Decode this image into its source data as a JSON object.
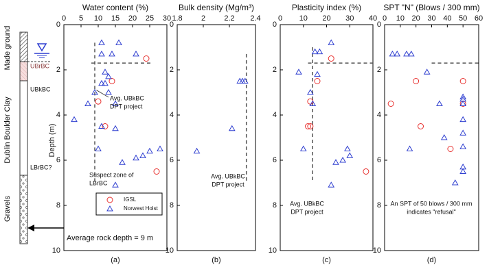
{
  "strata": {
    "left_labels": [
      "Made ground",
      "Dublin Boulder Clay",
      "Gravels"
    ],
    "right_labels": [
      "UBrBC",
      "UBkBC",
      "LBrBC?"
    ],
    "rock_depth_note": "Average rock depth = 9 m"
  },
  "chart_data": [
    {
      "type": "scatter",
      "title": "Water content (%)",
      "panel_label": "(a)",
      "ylabel": "Depth (m)",
      "xlim": [
        0,
        30
      ],
      "xticks": [
        0,
        5,
        10,
        15,
        20,
        25,
        30
      ],
      "ylim": [
        0,
        10
      ],
      "yticks": [
        0,
        2,
        4,
        6,
        8,
        10
      ],
      "y_inverted": true,
      "legend": true,
      "series": [
        {
          "name": "IGSL",
          "color": "#e8312f",
          "marker": "circle",
          "x": [
            24,
            14,
            10,
            12,
            27
          ],
          "y": [
            1.5,
            2.5,
            3.4,
            4.5,
            6.5
          ]
        },
        {
          "name": "Norwest Holst",
          "color": "#2f3fd0",
          "marker": "triangle",
          "x": [
            11,
            16,
            11,
            14,
            21,
            12,
            13,
            11,
            12,
            9,
            13,
            7,
            15,
            3,
            11,
            15,
            10,
            28,
            25,
            23,
            21,
            17,
            15
          ],
          "y": [
            0.8,
            0.8,
            1.3,
            1.3,
            1.3,
            2.1,
            2.3,
            2.6,
            2.6,
            3.0,
            3.0,
            3.5,
            3.5,
            4.2,
            4.5,
            4.6,
            5.5,
            5.5,
            5.6,
            5.8,
            5.9,
            6.1,
            7.1
          ]
        }
      ],
      "ref_lines": [
        {
          "x": [
            8,
            26
          ],
          "y": [
            1.7,
            1.7
          ]
        },
        {
          "x": [
            9,
            9
          ],
          "y": [
            0.8,
            7
          ]
        }
      ],
      "annotations": [
        [
          "Avg. UBkBC",
          "DPT project"
        ],
        [
          "Suspect zone of",
          "LBrBC"
        ]
      ]
    },
    {
      "type": "scatter",
      "title": "Bulk density (Mg/m³)",
      "panel_label": "(b)",
      "xlim": [
        1.8,
        2.4
      ],
      "xticks": [
        1.8,
        2,
        2.2,
        2.4
      ],
      "ylim": [
        0,
        10
      ],
      "yticks": [
        0,
        2,
        4,
        6,
        8,
        10
      ],
      "y_inverted": true,
      "series": [
        {
          "color": "#2f3fd0",
          "marker": "triangle",
          "x": [
            2.28,
            2.3,
            2.32,
            2.22,
            1.95
          ],
          "y": [
            2.5,
            2.5,
            2.5,
            4.6,
            5.6
          ]
        }
      ],
      "ref_lines": [
        {
          "x": [
            2.33,
            2.33
          ],
          "y": [
            1.3,
            7
          ]
        }
      ],
      "annotations": [
        [
          "Avg. UBkBC",
          "DPT project"
        ]
      ]
    },
    {
      "type": "scatter",
      "title": "Plasticity index (%)",
      "panel_label": "(c)",
      "xlim": [
        0,
        40
      ],
      "xticks": [
        0,
        10,
        20,
        30,
        40
      ],
      "ylim": [
        0,
        10
      ],
      "yticks": [
        0,
        2,
        4,
        6,
        8,
        10
      ],
      "y_inverted": true,
      "series": [
        {
          "color": "#e8312f",
          "marker": "circle",
          "x": [
            22,
            16,
            13,
            12,
            13,
            37
          ],
          "y": [
            1.5,
            2.5,
            3.4,
            4.5,
            4.5,
            6.5
          ]
        },
        {
          "color": "#2f3fd0",
          "marker": "triangle",
          "x": [
            22,
            15,
            17,
            8,
            16,
            13,
            14,
            10,
            29,
            30,
            27,
            24,
            22
          ],
          "y": [
            0.8,
            1.2,
            1.2,
            2.1,
            2.2,
            3.0,
            3.5,
            5.5,
            5.5,
            5.8,
            6.0,
            6.1,
            7.1
          ]
        }
      ],
      "ref_lines": [
        {
          "x": [
            12,
            40
          ],
          "y": [
            1.7,
            1.7
          ]
        },
        {
          "x": [
            14,
            14
          ],
          "y": [
            1.0,
            7
          ]
        }
      ],
      "annotations": [
        [
          "Avg. UBkBC",
          "DPT project"
        ]
      ]
    },
    {
      "type": "scatter",
      "title": "SPT \"N\" (Blows / 300 mm)",
      "panel_label": "(d)",
      "xlim": [
        0,
        60
      ],
      "xticks": [
        0,
        10,
        20,
        30,
        40,
        50,
        60
      ],
      "ylim": [
        0,
        10
      ],
      "yticks": [
        0,
        2,
        4,
        6,
        8,
        10
      ],
      "y_inverted": true,
      "series": [
        {
          "color": "#e8312f",
          "marker": "circle",
          "x": [
            20,
            50,
            4,
            50,
            23,
            42
          ],
          "y": [
            2.5,
            2.5,
            3.5,
            3.5,
            4.5,
            5.5
          ]
        },
        {
          "color": "#2f3fd0",
          "marker": "triangle",
          "x": [
            5,
            8,
            14,
            17,
            27,
            50,
            50,
            50,
            35,
            50,
            50,
            38,
            50,
            16,
            50,
            50,
            45
          ],
          "y": [
            1.3,
            1.3,
            1.3,
            1.3,
            2.1,
            3.2,
            3.3,
            3.5,
            3.5,
            4.2,
            4.8,
            5.0,
            5.4,
            5.5,
            6.3,
            6.5,
            7.0
          ]
        }
      ],
      "ref_lines": [
        {
          "x": [
            30,
            60
          ],
          "y": [
            1.7,
            1.7
          ]
        }
      ],
      "annotations": [
        [
          "An SPT of 50 blows / 300 mm",
          "indicates \"refusal\""
        ]
      ]
    }
  ]
}
